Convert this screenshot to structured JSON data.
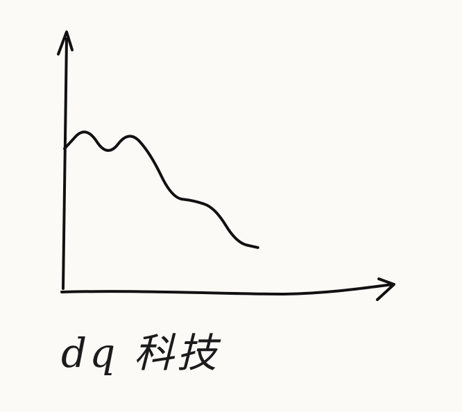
{
  "caption": "dq 科技",
  "chart_data": {
    "type": "line",
    "title": "",
    "xlabel": "",
    "ylabel": "",
    "x": [
      0,
      1,
      2,
      3,
      4,
      5,
      6,
      7,
      8,
      9
    ],
    "series": [
      {
        "values": [
          6.0,
          7.0,
          5.6,
          6.8,
          5.8,
          3.9,
          3.8,
          3.5,
          2.0,
          1.8
        ]
      }
    ],
    "xlim": [
      0,
      15.5
    ],
    "ylim": [
      0,
      10.9
    ],
    "grid": false,
    "axes_arrows": true,
    "style": "hand-drawn",
    "colors": {
      "ink": "#111111",
      "paper": "#fbfaf7"
    }
  }
}
